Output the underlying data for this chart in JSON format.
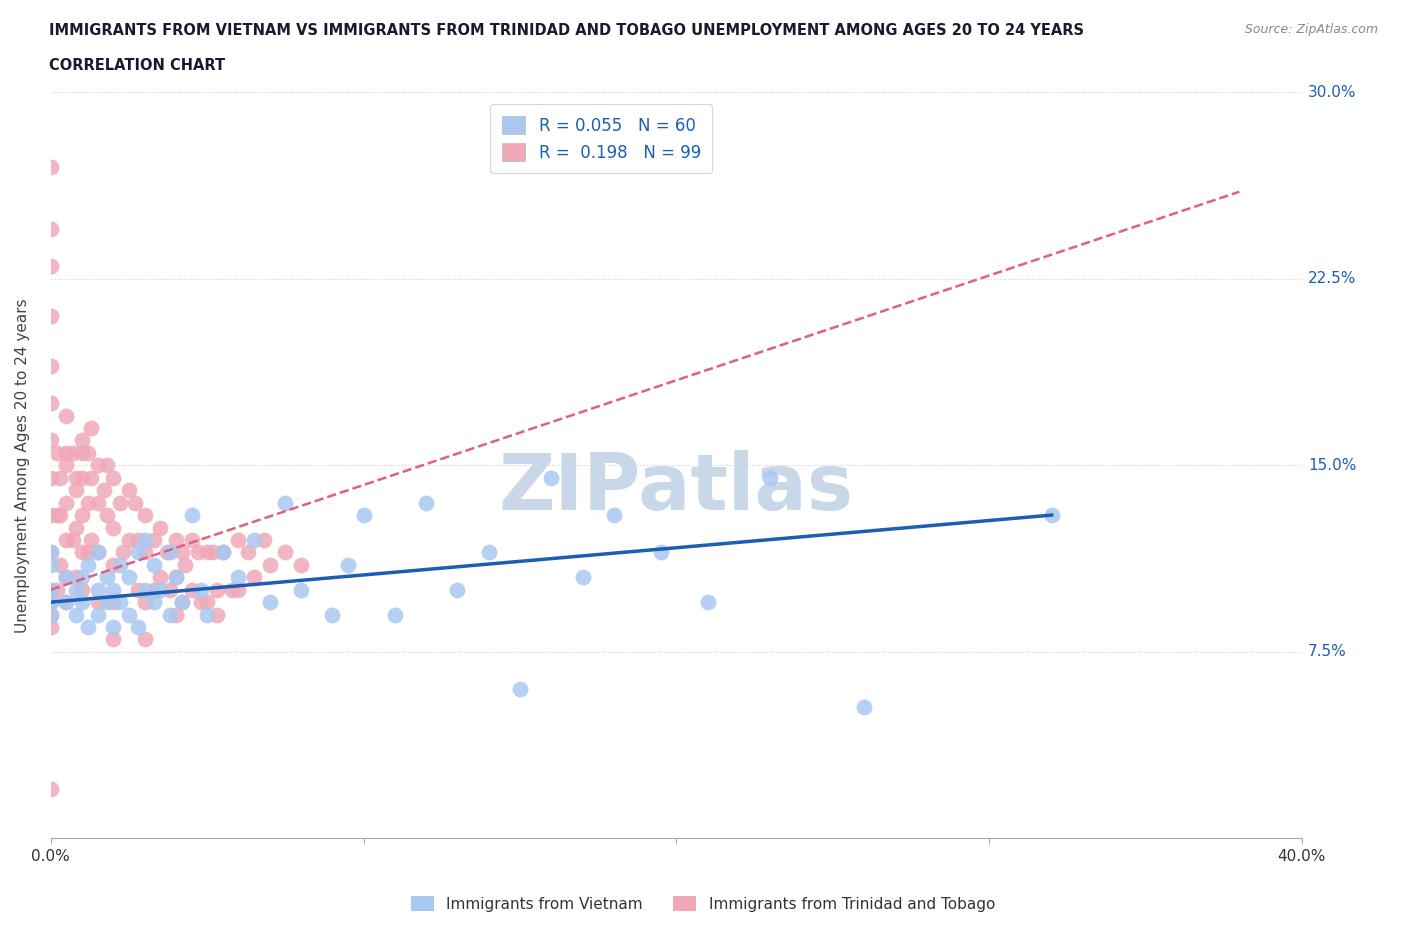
{
  "title_line1": "IMMIGRANTS FROM VIETNAM VS IMMIGRANTS FROM TRINIDAD AND TOBAGO UNEMPLOYMENT AMONG AGES 20 TO 24 YEARS",
  "title_line2": "CORRELATION CHART",
  "source": "Source: ZipAtlas.com",
  "ylabel": "Unemployment Among Ages 20 to 24 years",
  "x_min": 0.0,
  "x_max": 0.4,
  "y_min": 0.0,
  "y_max": 0.3,
  "x_ticks": [
    0.0,
    0.1,
    0.2,
    0.3,
    0.4
  ],
  "y_ticks": [
    0.0,
    0.075,
    0.15,
    0.225,
    0.3
  ],
  "y_tick_labels_right": [
    "",
    "7.5%",
    "15.0%",
    "22.5%",
    "30.0%"
  ],
  "x_tick_labels": [
    "0.0%",
    "",
    "",
    "",
    "40.0%"
  ],
  "color_vietnam": "#a8c8f0",
  "color_tt": "#f0a8b8",
  "trendline_vietnam_color": "#1a5fb4",
  "trendline_tt_color": "#e06080",
  "watermark": "ZIPatlas",
  "watermark_color": "#c8d8e8",
  "label_vietnam": "Immigrants from Vietnam",
  "label_tt": "Immigrants from Trinidad and Tobago",
  "vietnam_x": [
    0.0,
    0.0,
    0.0,
    0.0,
    0.0,
    0.005,
    0.005,
    0.008,
    0.008,
    0.01,
    0.01,
    0.012,
    0.012,
    0.015,
    0.015,
    0.015,
    0.018,
    0.018,
    0.02,
    0.02,
    0.022,
    0.022,
    0.025,
    0.025,
    0.028,
    0.028,
    0.03,
    0.03,
    0.033,
    0.033,
    0.035,
    0.038,
    0.038,
    0.04,
    0.042,
    0.045,
    0.048,
    0.05,
    0.055,
    0.06,
    0.065,
    0.07,
    0.075,
    0.08,
    0.09,
    0.095,
    0.1,
    0.11,
    0.12,
    0.13,
    0.14,
    0.15,
    0.16,
    0.17,
    0.18,
    0.195,
    0.21,
    0.23,
    0.26,
    0.32
  ],
  "vietnam_y": [
    0.1,
    0.11,
    0.09,
    0.115,
    0.095,
    0.105,
    0.095,
    0.1,
    0.09,
    0.105,
    0.095,
    0.11,
    0.085,
    0.1,
    0.115,
    0.09,
    0.105,
    0.095,
    0.1,
    0.085,
    0.11,
    0.095,
    0.105,
    0.09,
    0.115,
    0.085,
    0.1,
    0.12,
    0.095,
    0.11,
    0.1,
    0.09,
    0.115,
    0.105,
    0.095,
    0.13,
    0.1,
    0.09,
    0.115,
    0.105,
    0.12,
    0.095,
    0.135,
    0.1,
    0.09,
    0.11,
    0.13,
    0.09,
    0.135,
    0.1,
    0.115,
    0.06,
    0.145,
    0.105,
    0.13,
    0.115,
    0.095,
    0.145,
    0.053,
    0.13
  ],
  "tt_x": [
    0.0,
    0.0,
    0.0,
    0.0,
    0.0,
    0.0,
    0.0,
    0.0,
    0.0,
    0.0,
    0.0,
    0.0,
    0.0,
    0.0,
    0.0,
    0.002,
    0.002,
    0.002,
    0.003,
    0.003,
    0.005,
    0.005,
    0.005,
    0.005,
    0.005,
    0.005,
    0.007,
    0.007,
    0.008,
    0.008,
    0.008,
    0.01,
    0.01,
    0.01,
    0.01,
    0.01,
    0.012,
    0.012,
    0.012,
    0.013,
    0.013,
    0.015,
    0.015,
    0.015,
    0.015,
    0.017,
    0.018,
    0.018,
    0.02,
    0.02,
    0.02,
    0.02,
    0.02,
    0.022,
    0.023,
    0.025,
    0.025,
    0.027,
    0.028,
    0.028,
    0.03,
    0.03,
    0.03,
    0.03,
    0.033,
    0.033,
    0.035,
    0.035,
    0.037,
    0.038,
    0.04,
    0.04,
    0.04,
    0.042,
    0.042,
    0.043,
    0.045,
    0.045,
    0.047,
    0.048,
    0.05,
    0.05,
    0.052,
    0.053,
    0.053,
    0.055,
    0.058,
    0.06,
    0.06,
    0.063,
    0.065,
    0.068,
    0.07,
    0.075,
    0.08,
    0.01,
    0.013,
    0.008,
    0.005,
    0.003
  ],
  "tt_y": [
    0.27,
    0.245,
    0.23,
    0.21,
    0.19,
    0.175,
    0.16,
    0.145,
    0.13,
    0.115,
    0.1,
    0.095,
    0.09,
    0.085,
    0.02,
    0.155,
    0.13,
    0.1,
    0.145,
    0.11,
    0.17,
    0.15,
    0.135,
    0.12,
    0.105,
    0.095,
    0.155,
    0.12,
    0.145,
    0.125,
    0.105,
    0.16,
    0.145,
    0.13,
    0.115,
    0.1,
    0.155,
    0.135,
    0.115,
    0.145,
    0.12,
    0.15,
    0.135,
    0.115,
    0.095,
    0.14,
    0.15,
    0.13,
    0.145,
    0.125,
    0.11,
    0.095,
    0.08,
    0.135,
    0.115,
    0.14,
    0.12,
    0.135,
    0.12,
    0.1,
    0.13,
    0.115,
    0.095,
    0.08,
    0.12,
    0.1,
    0.125,
    0.105,
    0.115,
    0.1,
    0.12,
    0.105,
    0.09,
    0.115,
    0.095,
    0.11,
    0.12,
    0.1,
    0.115,
    0.095,
    0.115,
    0.095,
    0.115,
    0.1,
    0.09,
    0.115,
    0.1,
    0.12,
    0.1,
    0.115,
    0.105,
    0.12,
    0.11,
    0.115,
    0.11,
    0.155,
    0.165,
    0.14,
    0.155,
    0.13
  ],
  "vietnam_trend_x": [
    0.0,
    0.32
  ],
  "vietnam_trend_y": [
    0.095,
    0.13
  ],
  "tt_trend_x0": 0.0,
  "tt_trend_x1": 0.38,
  "tt_trend_y0": 0.1,
  "tt_trend_y1": 0.26
}
